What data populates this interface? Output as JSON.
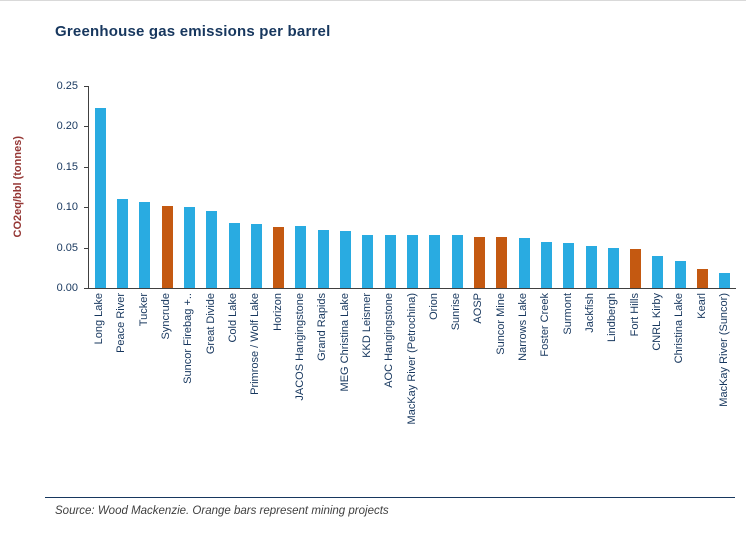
{
  "title": "Greenhouse gas emissions per barrel",
  "source_note": "Source: Wood Mackenzie. Orange bars  represent mining projects",
  "colors": {
    "bar": "#29ABE1",
    "mining_bar": "#C45911",
    "title_text": "#17375E",
    "axis_label_text": "#953735",
    "tick_text": "#17375E"
  },
  "chart_data": {
    "type": "bar",
    "title": "Greenhouse gas emissions per barrel",
    "ylabel": "CO2eq/bbl (tonnes)",
    "xlabel": "",
    "ylim": [
      0,
      0.25
    ],
    "yticks": [
      "0.00",
      "0.05",
      "0.10",
      "0.15",
      "0.20",
      "0.25"
    ],
    "grid": false,
    "legend_position": "none",
    "legend_note": "Orange bars represent mining projects",
    "categories": [
      "Long Lake",
      "Peace River",
      "Tucker",
      "Syncrude",
      "Suncor Firebag +..",
      "Great Divide",
      "Cold Lake",
      "Primrose / Wolf Lake",
      "Horizon",
      "JACOS Hangingstone",
      "Grand Rapids",
      "MEG Christina Lake",
      "KKD Leismer",
      "AOC Hangingstone",
      "MacKay River (Petrochina)",
      "Orion",
      "Sunrise",
      "AOSP",
      "Suncor Mine",
      "Narrows Lake",
      "Foster Creek",
      "Surmont",
      "Jackfish",
      "Lindbergh",
      "Fort Hills",
      "CNRL Kirby",
      "Christina Lake",
      "Kearl",
      "MacKay River (Suncor)"
    ],
    "values": [
      0.223,
      0.11,
      0.107,
      0.101,
      0.1,
      0.095,
      0.08,
      0.079,
      0.076,
      0.077,
      0.072,
      0.071,
      0.066,
      0.065,
      0.065,
      0.065,
      0.065,
      0.063,
      0.063,
      0.062,
      0.057,
      0.056,
      0.052,
      0.05,
      0.048,
      0.04,
      0.033,
      0.023,
      0.018
    ],
    "is_mining_project": [
      false,
      false,
      false,
      true,
      false,
      false,
      false,
      false,
      true,
      false,
      false,
      false,
      false,
      false,
      false,
      false,
      false,
      true,
      true,
      false,
      false,
      false,
      false,
      false,
      true,
      false,
      false,
      true,
      false
    ]
  }
}
